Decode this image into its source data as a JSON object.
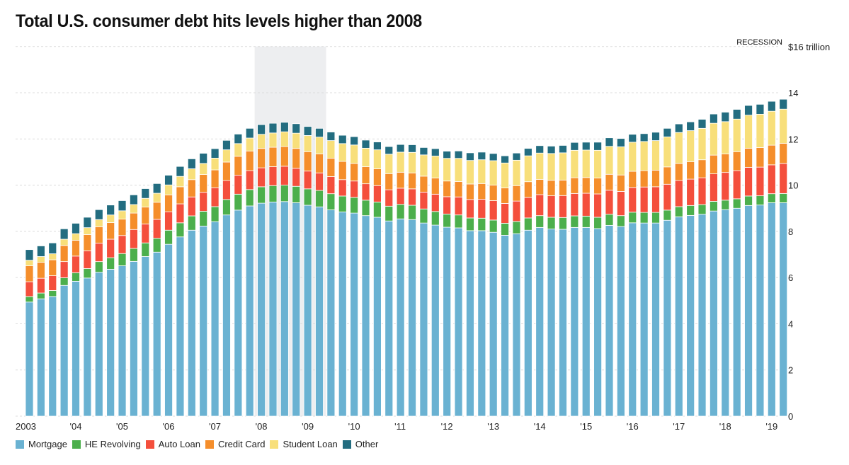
{
  "chart_data": {
    "type": "bar",
    "stacked": true,
    "title": "Total U.S. consumer debt hits levels higher than 2008",
    "ylabel": "$ trillion",
    "y_top_label": "$16 trillion",
    "ylim": [
      0,
      16
    ],
    "yticks": [
      0,
      2,
      4,
      6,
      8,
      10,
      12,
      14
    ],
    "grid": true,
    "legend_position": "bottom-left",
    "annotation": {
      "label": "RECESSION",
      "start_quarter_index": 20,
      "end_quarter_index": 25
    },
    "x_tick_labels": [
      {
        "label": "2003",
        "quarter_index": 0
      },
      {
        "label": "'04",
        "quarter_index": 4
      },
      {
        "label": "'05",
        "quarter_index": 8
      },
      {
        "label": "'06",
        "quarter_index": 12
      },
      {
        "label": "'07",
        "quarter_index": 16
      },
      {
        "label": "'08",
        "quarter_index": 20
      },
      {
        "label": "'09",
        "quarter_index": 24
      },
      {
        "label": "'10",
        "quarter_index": 28
      },
      {
        "label": "'11",
        "quarter_index": 32
      },
      {
        "label": "'12",
        "quarter_index": 36
      },
      {
        "label": "'13",
        "quarter_index": 40
      },
      {
        "label": "'14",
        "quarter_index": 44
      },
      {
        "label": "'15",
        "quarter_index": 48
      },
      {
        "label": "'16",
        "quarter_index": 52
      },
      {
        "label": "'17",
        "quarter_index": 56
      },
      {
        "label": "'18",
        "quarter_index": 60
      },
      {
        "label": "'19",
        "quarter_index": 64
      }
    ],
    "categories": [
      "2003Q1",
      "2003Q2",
      "2003Q3",
      "2003Q4",
      "2004Q1",
      "2004Q2",
      "2004Q3",
      "2004Q4",
      "2005Q1",
      "2005Q2",
      "2005Q3",
      "2005Q4",
      "2006Q1",
      "2006Q2",
      "2006Q3",
      "2006Q4",
      "2007Q1",
      "2007Q2",
      "2007Q3",
      "2007Q4",
      "2008Q1",
      "2008Q2",
      "2008Q3",
      "2008Q4",
      "2009Q1",
      "2009Q2",
      "2009Q3",
      "2009Q4",
      "2010Q1",
      "2010Q2",
      "2010Q3",
      "2010Q4",
      "2011Q1",
      "2011Q2",
      "2011Q3",
      "2011Q4",
      "2012Q1",
      "2012Q2",
      "2012Q3",
      "2012Q4",
      "2013Q1",
      "2013Q2",
      "2013Q3",
      "2013Q4",
      "2014Q1",
      "2014Q2",
      "2014Q3",
      "2014Q4",
      "2015Q1",
      "2015Q2",
      "2015Q3",
      "2015Q4",
      "2016Q1",
      "2016Q2",
      "2016Q3",
      "2016Q4",
      "2017Q1",
      "2017Q2",
      "2017Q3",
      "2017Q4",
      "2018Q1",
      "2018Q2",
      "2018Q3",
      "2018Q4",
      "2019Q1",
      "2019Q2"
    ],
    "series": [
      {
        "name": "Mortgage",
        "color": "#6ab2d2",
        "values": [
          4.94,
          5.08,
          5.18,
          5.66,
          5.84,
          5.98,
          6.23,
          6.36,
          6.51,
          6.7,
          6.91,
          7.1,
          7.44,
          7.76,
          8.05,
          8.23,
          8.42,
          8.71,
          8.92,
          9.1,
          9.22,
          9.27,
          9.29,
          9.24,
          9.13,
          9.06,
          8.93,
          8.84,
          8.79,
          8.68,
          8.61,
          8.45,
          8.54,
          8.51,
          8.36,
          8.27,
          8.18,
          8.15,
          8.03,
          8.03,
          7.96,
          7.83,
          7.9,
          8.05,
          8.17,
          8.1,
          8.09,
          8.17,
          8.17,
          8.12,
          8.26,
          8.21,
          8.37,
          8.36,
          8.36,
          8.48,
          8.63,
          8.69,
          8.74,
          8.88,
          8.94,
          9.0,
          9.12,
          9.14,
          9.24,
          9.24
        ]
      },
      {
        "name": "HE Revolving",
        "color": "#4caf4c",
        "values": [
          0.24,
          0.25,
          0.26,
          0.33,
          0.37,
          0.41,
          0.46,
          0.5,
          0.53,
          0.56,
          0.59,
          0.6,
          0.61,
          0.61,
          0.62,
          0.64,
          0.65,
          0.67,
          0.69,
          0.71,
          0.71,
          0.71,
          0.71,
          0.71,
          0.71,
          0.71,
          0.7,
          0.69,
          0.68,
          0.67,
          0.66,
          0.64,
          0.63,
          0.62,
          0.61,
          0.59,
          0.57,
          0.56,
          0.55,
          0.54,
          0.53,
          0.52,
          0.53,
          0.53,
          0.51,
          0.51,
          0.51,
          0.5,
          0.49,
          0.49,
          0.48,
          0.47,
          0.46,
          0.46,
          0.46,
          0.44,
          0.44,
          0.43,
          0.42,
          0.42,
          0.41,
          0.41,
          0.41,
          0.4,
          0.39,
          0.4
        ]
      },
      {
        "name": "Auto Loan",
        "color": "#f44f3c",
        "values": [
          0.64,
          0.64,
          0.64,
          0.7,
          0.72,
          0.77,
          0.8,
          0.8,
          0.78,
          0.82,
          0.82,
          0.82,
          0.8,
          0.82,
          0.82,
          0.82,
          0.82,
          0.82,
          0.82,
          0.82,
          0.82,
          0.82,
          0.82,
          0.78,
          0.77,
          0.76,
          0.74,
          0.71,
          0.71,
          0.71,
          0.71,
          0.71,
          0.7,
          0.71,
          0.73,
          0.75,
          0.75,
          0.78,
          0.8,
          0.82,
          0.84,
          0.86,
          0.88,
          0.89,
          0.91,
          0.93,
          0.95,
          0.97,
          0.99,
          1.01,
          1.04,
          1.05,
          1.07,
          1.1,
          1.11,
          1.12,
          1.13,
          1.14,
          1.16,
          1.19,
          1.2,
          1.22,
          1.24,
          1.24,
          1.25,
          1.3
        ]
      },
      {
        "name": "Credit Card",
        "color": "#f58e2b",
        "values": [
          0.69,
          0.69,
          0.69,
          0.7,
          0.68,
          0.7,
          0.71,
          0.72,
          0.71,
          0.71,
          0.73,
          0.74,
          0.73,
          0.74,
          0.75,
          0.77,
          0.77,
          0.8,
          0.82,
          0.85,
          0.84,
          0.84,
          0.85,
          0.86,
          0.84,
          0.82,
          0.8,
          0.79,
          0.76,
          0.74,
          0.73,
          0.7,
          0.69,
          0.69,
          0.69,
          0.7,
          0.68,
          0.67,
          0.67,
          0.68,
          0.67,
          0.67,
          0.67,
          0.68,
          0.66,
          0.67,
          0.67,
          0.68,
          0.68,
          0.69,
          0.69,
          0.71,
          0.7,
          0.71,
          0.72,
          0.75,
          0.74,
          0.76,
          0.78,
          0.81,
          0.8,
          0.82,
          0.83,
          0.85,
          0.85,
          0.87
        ]
      },
      {
        "name": "Student Loan",
        "color": "#f8df7a",
        "values": [
          0.24,
          0.25,
          0.26,
          0.27,
          0.29,
          0.3,
          0.31,
          0.33,
          0.36,
          0.37,
          0.38,
          0.39,
          0.43,
          0.45,
          0.47,
          0.48,
          0.51,
          0.53,
          0.55,
          0.56,
          0.61,
          0.62,
          0.64,
          0.66,
          0.7,
          0.73,
          0.76,
          0.77,
          0.8,
          0.8,
          0.82,
          0.84,
          0.87,
          0.89,
          0.92,
          0.95,
          0.98,
          1.0,
          1.02,
          1.03,
          1.06,
          1.08,
          1.1,
          1.12,
          1.14,
          1.16,
          1.18,
          1.19,
          1.19,
          1.2,
          1.21,
          1.22,
          1.26,
          1.26,
          1.28,
          1.3,
          1.34,
          1.34,
          1.36,
          1.38,
          1.4,
          1.41,
          1.43,
          1.44,
          1.47,
          1.48
        ]
      },
      {
        "name": "Other",
        "color": "#236d80",
        "values": [
          0.46,
          0.46,
          0.47,
          0.45,
          0.45,
          0.45,
          0.43,
          0.43,
          0.44,
          0.42,
          0.42,
          0.42,
          0.42,
          0.43,
          0.43,
          0.44,
          0.41,
          0.41,
          0.41,
          0.42,
          0.42,
          0.42,
          0.41,
          0.41,
          0.39,
          0.38,
          0.37,
          0.36,
          0.36,
          0.35,
          0.34,
          0.33,
          0.33,
          0.33,
          0.32,
          0.32,
          0.31,
          0.32,
          0.33,
          0.33,
          0.31,
          0.31,
          0.31,
          0.32,
          0.32,
          0.32,
          0.32,
          0.34,
          0.34,
          0.35,
          0.37,
          0.36,
          0.34,
          0.34,
          0.36,
          0.37,
          0.37,
          0.38,
          0.39,
          0.4,
          0.41,
          0.42,
          0.42,
          0.43,
          0.43,
          0.43
        ]
      }
    ]
  }
}
